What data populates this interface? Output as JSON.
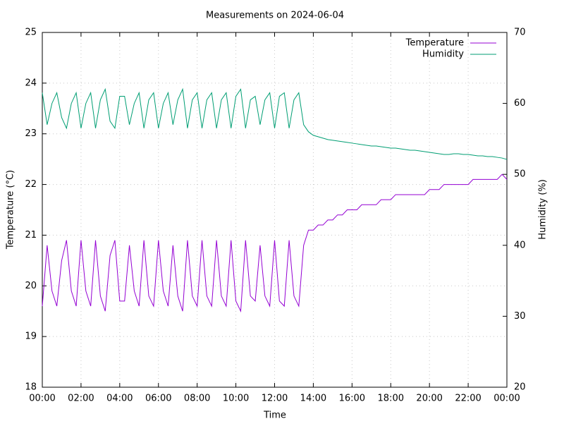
{
  "chart_data": {
    "type": "line",
    "title": "Measurements on 2024-06-04",
    "x_label": "Time",
    "y_label": "Temperature (°C)",
    "y2_label": "Humidity (%)",
    "x": [
      0,
      0.25,
      0.5,
      0.75,
      1,
      1.25,
      1.5,
      1.75,
      2,
      2.25,
      2.5,
      2.75,
      3,
      3.25,
      3.5,
      3.75,
      4,
      4.25,
      4.5,
      4.75,
      5,
      5.25,
      5.5,
      5.75,
      6,
      6.25,
      6.5,
      6.75,
      7,
      7.25,
      7.5,
      7.75,
      8,
      8.25,
      8.5,
      8.75,
      9,
      9.25,
      9.5,
      9.75,
      10,
      10.25,
      10.5,
      10.75,
      11,
      11.25,
      11.5,
      11.75,
      12,
      12.25,
      12.5,
      12.75,
      13,
      13.25,
      13.5,
      13.75,
      14,
      14.25,
      14.5,
      14.75,
      15,
      15.25,
      15.5,
      15.75,
      16,
      16.25,
      16.5,
      16.75,
      17,
      17.25,
      17.5,
      17.75,
      18,
      18.25,
      18.5,
      18.75,
      19,
      19.25,
      19.5,
      19.75,
      20,
      20.25,
      20.5,
      20.75,
      21,
      21.25,
      21.5,
      21.75,
      22,
      22.25,
      22.5,
      22.75,
      23,
      23.25,
      23.5,
      23.75,
      24
    ],
    "series": [
      {
        "name": "Temperature",
        "color": "#9400d3",
        "axis": "y",
        "values": [
          19.6,
          20.8,
          19.9,
          19.6,
          20.5,
          20.9,
          19.9,
          19.6,
          20.9,
          19.9,
          19.6,
          20.9,
          19.8,
          19.5,
          20.6,
          20.9,
          19.7,
          19.7,
          20.8,
          19.9,
          19.6,
          20.9,
          19.8,
          19.6,
          20.9,
          19.9,
          19.6,
          20.8,
          19.8,
          19.5,
          20.9,
          19.8,
          19.6,
          20.9,
          19.8,
          19.6,
          20.9,
          19.8,
          19.6,
          20.9,
          19.7,
          19.5,
          20.9,
          19.8,
          19.7,
          20.8,
          19.8,
          19.6,
          20.9,
          19.7,
          19.6,
          20.9,
          19.8,
          19.6,
          20.8,
          21.1,
          21.1,
          21.2,
          21.2,
          21.3,
          21.3,
          21.4,
          21.4,
          21.5,
          21.5,
          21.5,
          21.6,
          21.6,
          21.6,
          21.6,
          21.7,
          21.7,
          21.7,
          21.8,
          21.8,
          21.8,
          21.8,
          21.8,
          21.8,
          21.8,
          21.9,
          21.9,
          21.9,
          22.0,
          22.0,
          22.0,
          22.0,
          22.0,
          22.0,
          22.1,
          22.1,
          22.1,
          22.1,
          22.1,
          22.1,
          22.2,
          22.1
        ]
      },
      {
        "name": "Humidity",
        "color": "#009e73",
        "axis": "y2",
        "values": [
          61.5,
          57,
          60,
          61.5,
          58,
          56.5,
          60,
          61.5,
          56.5,
          60,
          61.5,
          56.5,
          60.5,
          62,
          57.5,
          56.5,
          61,
          61,
          57,
          60,
          61.5,
          56.5,
          60.5,
          61.5,
          56.5,
          60,
          61.5,
          57,
          60.5,
          62,
          56.5,
          60.5,
          61.5,
          56.5,
          60.5,
          61.5,
          56.5,
          60.5,
          61.5,
          56.5,
          61,
          62,
          56.5,
          60.5,
          61,
          57,
          60.5,
          61.5,
          56.5,
          61,
          61.5,
          56.5,
          60.5,
          61.5,
          57,
          56,
          55.5,
          55.3,
          55.1,
          54.9,
          54.8,
          54.7,
          54.6,
          54.5,
          54.4,
          54.3,
          54.2,
          54.1,
          54.0,
          54.0,
          53.9,
          53.8,
          53.7,
          53.7,
          53.6,
          53.5,
          53.4,
          53.4,
          53.3,
          53.2,
          53.1,
          53.0,
          52.9,
          52.8,
          52.8,
          52.9,
          52.9,
          52.8,
          52.8,
          52.7,
          52.6,
          52.6,
          52.5,
          52.5,
          52.4,
          52.3,
          52.1
        ]
      }
    ],
    "xlim": [
      0,
      24
    ],
    "xticks": [
      {
        "value": 0,
        "label": "00:00"
      },
      {
        "value": 2,
        "label": "02:00"
      },
      {
        "value": 4,
        "label": "04:00"
      },
      {
        "value": 6,
        "label": "06:00"
      },
      {
        "value": 8,
        "label": "08:00"
      },
      {
        "value": 10,
        "label": "10:00"
      },
      {
        "value": 12,
        "label": "12:00"
      },
      {
        "value": 14,
        "label": "14:00"
      },
      {
        "value": 16,
        "label": "16:00"
      },
      {
        "value": 18,
        "label": "18:00"
      },
      {
        "value": 20,
        "label": "20:00"
      },
      {
        "value": 22,
        "label": "22:00"
      },
      {
        "value": 24,
        "label": "00:00"
      }
    ],
    "ylim": [
      18,
      25
    ],
    "yticks": [
      18,
      19,
      20,
      21,
      22,
      23,
      24,
      25
    ],
    "y2lim": [
      20,
      70
    ],
    "y2ticks": [
      20,
      30,
      40,
      50,
      60,
      70
    ],
    "grid": true,
    "legend": "top-right"
  }
}
